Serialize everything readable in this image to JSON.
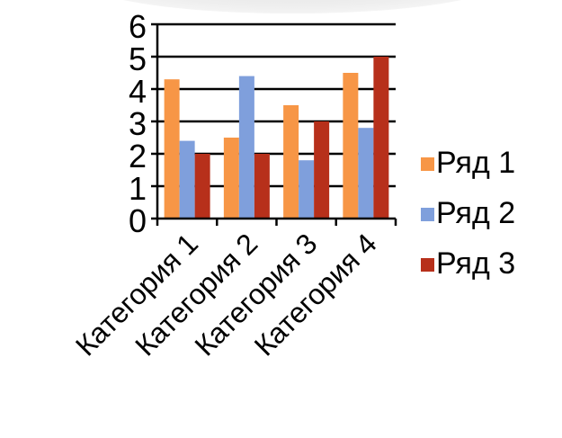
{
  "chart_data": {
    "type": "bar",
    "title": "",
    "xlabel": "",
    "ylabel": "",
    "categories": [
      "Категория 1",
      "Категория 2",
      "Категория 3",
      "Категория 4"
    ],
    "series": [
      {
        "name": "Ряд 1",
        "values": [
          4.3,
          2.5,
          3.5,
          4.5
        ],
        "color": "#f79646"
      },
      {
        "name": "Ряд 2",
        "values": [
          2.4,
          4.4,
          1.8,
          2.8
        ],
        "color": "#7f9fdc"
      },
      {
        "name": "Ряд 3",
        "values": [
          2.0,
          2.0,
          3.0,
          5.0
        ],
        "color": "#b7301b"
      }
    ],
    "ylim": [
      0,
      6
    ],
    "yticks": [
      "0",
      "1",
      "2",
      "3",
      "4",
      "5",
      "6"
    ],
    "grid": true,
    "legend_position": "right"
  }
}
